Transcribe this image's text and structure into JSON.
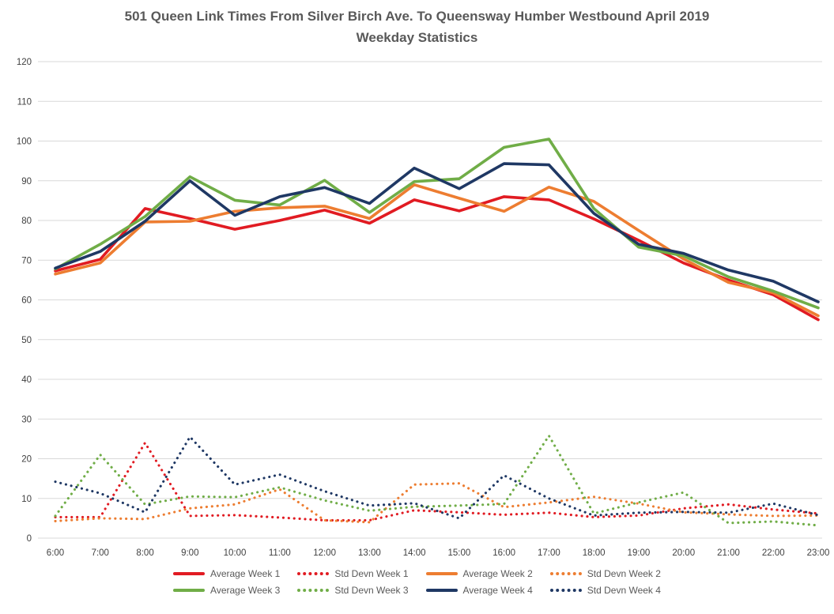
{
  "title": {
    "line1": "501 Queen Link Times From Silver Birch Ave. To Queensway Humber Westbound April 2019",
    "line2": "Weekday Statistics"
  },
  "colors": {
    "week1": "#e11b22",
    "week2": "#ed7d31",
    "week3": "#70ad47",
    "week4": "#1f3864",
    "gridline": "#d9d9d9",
    "title_text": "#595959",
    "axis_text": "#404040"
  },
  "chart_data": {
    "type": "line",
    "title": "501 Queen Link Times From Silver Birch Ave. To Queensway Humber Westbound April 2019 Weekday Statistics",
    "xlabel": "",
    "ylabel": "",
    "ylim": [
      0,
      120
    ],
    "ytick_step": 10,
    "grid": true,
    "legend_position": "bottom",
    "categories": [
      "6:00",
      "7:00",
      "8:00",
      "9:00",
      "10:00",
      "11:00",
      "12:00",
      "13:00",
      "14:00",
      "15:00",
      "16:00",
      "17:00",
      "18:00",
      "19:00",
      "20:00",
      "21:00",
      "22:00",
      "23:00"
    ],
    "series": [
      {
        "name": "Average Week 1",
        "color_key": "week1",
        "style": "solid",
        "values": [
          67.3,
          70.2,
          83.0,
          80.5,
          77.8,
          80.0,
          82.6,
          79.3,
          85.2,
          82.4,
          86.0,
          85.2,
          80.4,
          75.0,
          69.3,
          65.0,
          61.3,
          55.0
        ]
      },
      {
        "name": "Std Devn Week 1",
        "color_key": "week1",
        "style": "dotted",
        "values": [
          5.3,
          5.3,
          24.0,
          5.6,
          5.8,
          5.2,
          4.5,
          4.5,
          7.0,
          6.5,
          5.9,
          6.4,
          5.3,
          5.7,
          7.5,
          8.5,
          7.2,
          6.2
        ]
      },
      {
        "name": "Average Week 2",
        "color_key": "week2",
        "style": "solid",
        "values": [
          66.5,
          69.3,
          79.6,
          79.8,
          82.3,
          83.2,
          83.6,
          80.5,
          89.0,
          85.6,
          82.3,
          88.4,
          84.8,
          77.5,
          70.3,
          64.4,
          61.8,
          56.0
        ]
      },
      {
        "name": "Std Devn Week 2",
        "color_key": "week2",
        "style": "dotted",
        "values": [
          4.3,
          5.0,
          4.8,
          7.5,
          8.5,
          12.3,
          4.5,
          4.0,
          13.5,
          13.8,
          7.8,
          9.0,
          10.4,
          8.7,
          6.5,
          6.0,
          5.6,
          5.7
        ]
      },
      {
        "name": "Average Week 3",
        "color_key": "week3",
        "style": "solid",
        "values": [
          67.8,
          74.0,
          81.0,
          91.0,
          85.1,
          83.9,
          90.1,
          82.0,
          89.8,
          90.5,
          98.4,
          100.5,
          83.0,
          73.3,
          71.1,
          65.8,
          62.2,
          58.0
        ]
      },
      {
        "name": "Std Devn Week 3",
        "color_key": "week3",
        "style": "dotted",
        "values": [
          5.6,
          21.0,
          8.5,
          10.5,
          10.3,
          12.8,
          9.5,
          6.9,
          7.9,
          8.2,
          8.6,
          25.8,
          6.2,
          9.0,
          11.5,
          3.8,
          4.2,
          3.2
        ]
      },
      {
        "name": "Average Week 4",
        "color_key": "week4",
        "style": "solid",
        "values": [
          68.0,
          72.2,
          79.8,
          90.0,
          81.3,
          86.0,
          88.3,
          84.3,
          93.2,
          88.0,
          94.3,
          94.0,
          81.8,
          74.0,
          71.7,
          67.5,
          64.7,
          59.5
        ]
      },
      {
        "name": "Std Devn Week 4",
        "color_key": "week4",
        "style": "dotted",
        "values": [
          14.2,
          11.3,
          6.5,
          25.5,
          13.5,
          16.0,
          11.8,
          8.2,
          8.8,
          5.0,
          15.8,
          10.0,
          5.7,
          6.4,
          6.6,
          6.4,
          8.7,
          5.8
        ]
      }
    ]
  },
  "legend": {
    "rows": [
      [
        0,
        1,
        2,
        3
      ],
      [
        4,
        5,
        6,
        7
      ]
    ]
  }
}
